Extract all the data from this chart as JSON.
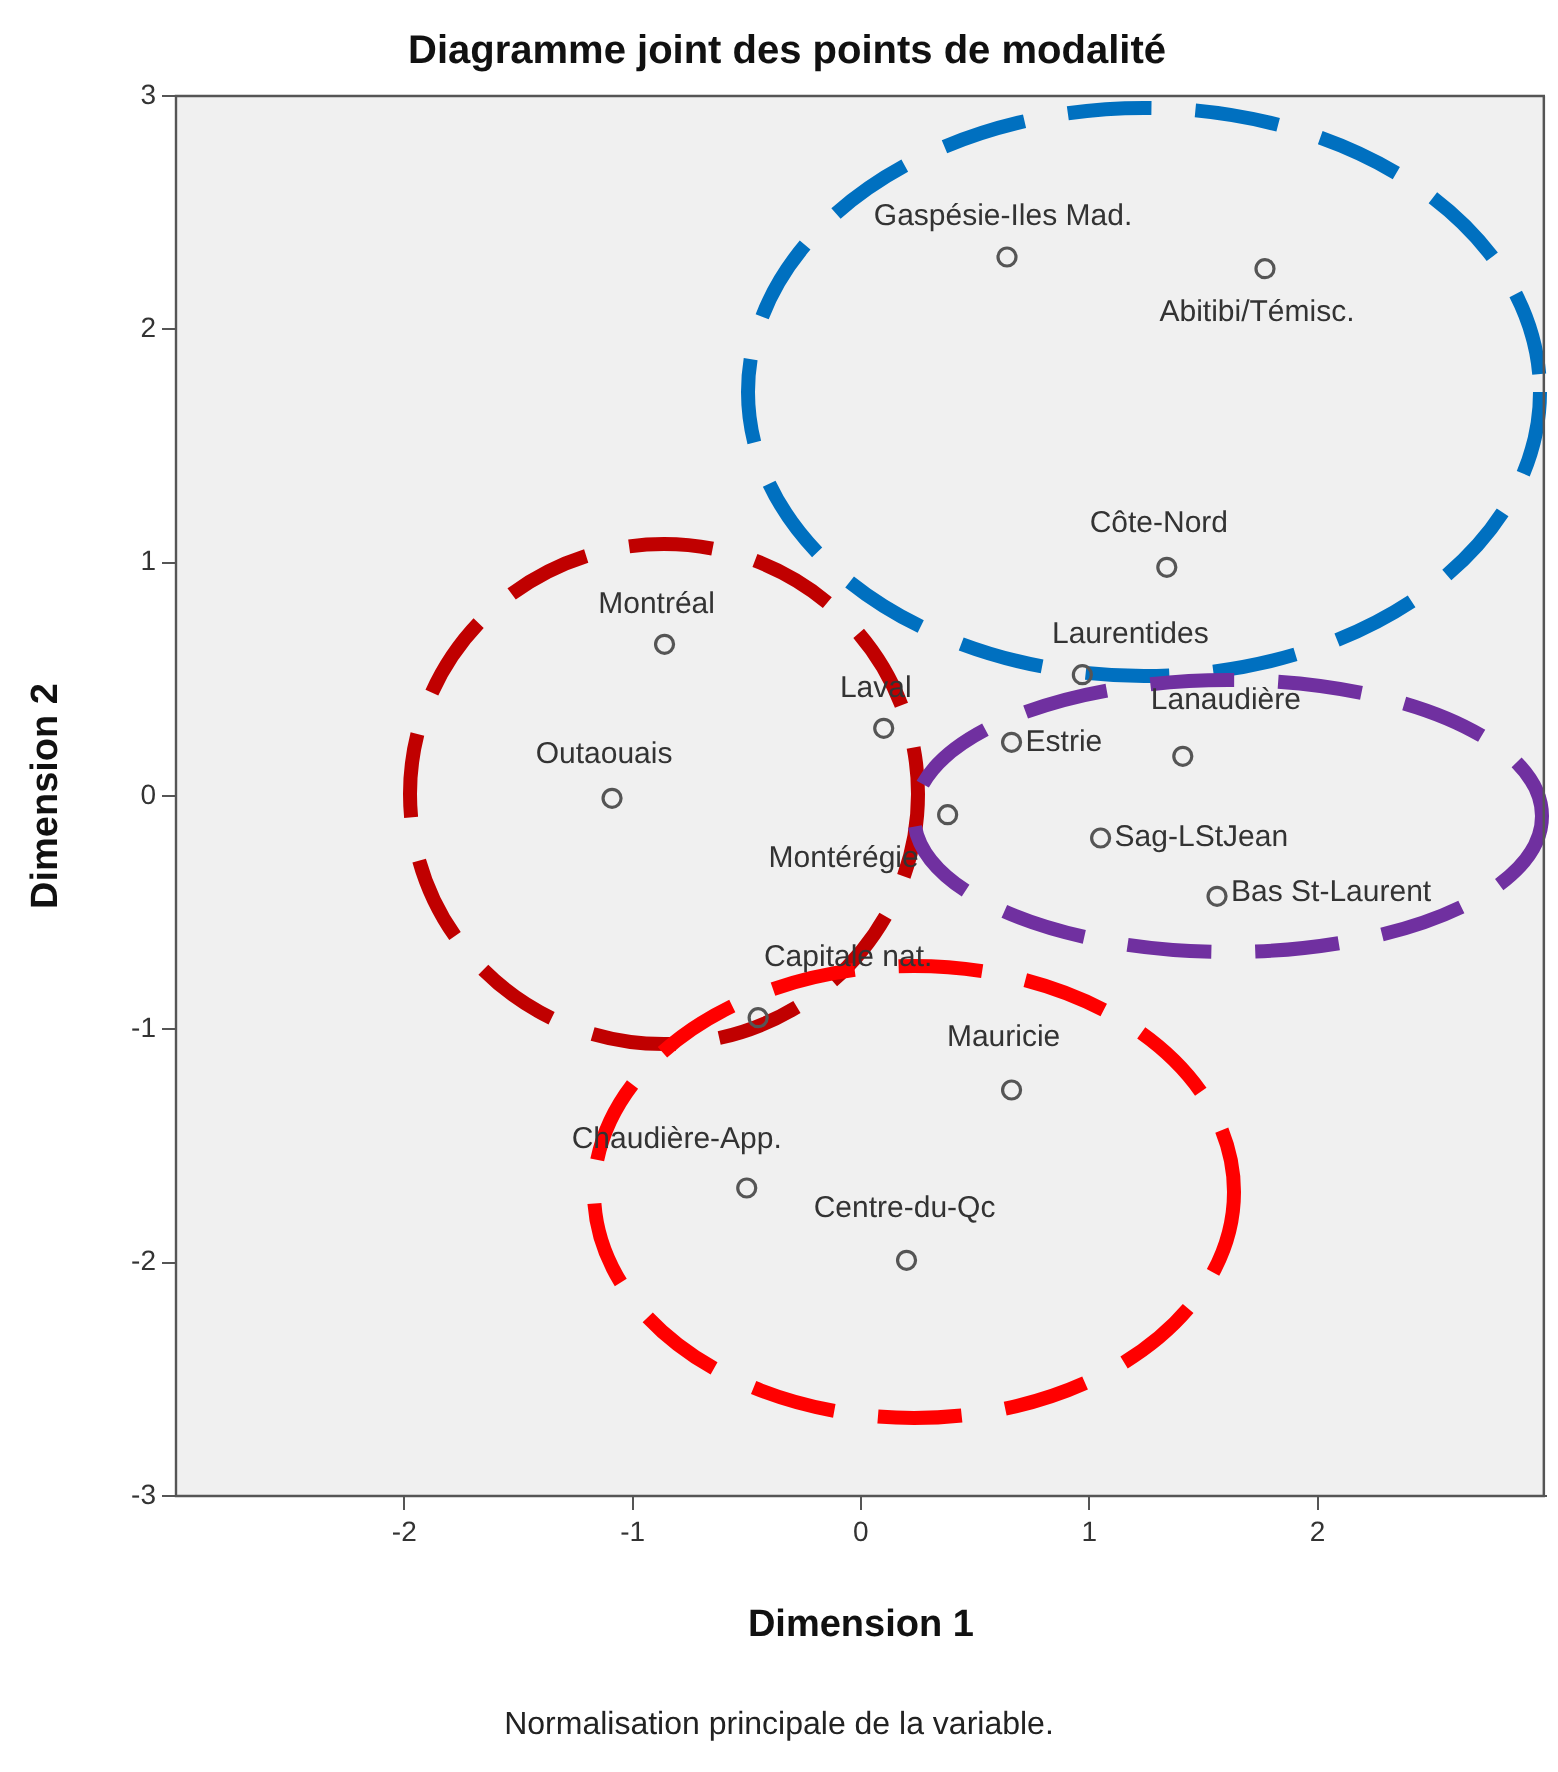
{
  "chart_data": {
    "type": "scatter",
    "title": "Diagramme joint des points de modalité",
    "xlabel": "Dimension 1",
    "ylabel": "Dimension 2",
    "x": [
      0.64,
      1.77,
      1.34,
      -0.86,
      0.97,
      0.1,
      0.66,
      1.41,
      -1.09,
      0.38,
      1.05,
      1.56,
      -0.45,
      0.66,
      -0.5,
      0.2
    ],
    "series": [
      {
        "color": "#555555",
        "values": [
          2.31,
          2.26,
          0.98,
          0.65,
          0.52,
          0.29,
          0.23,
          0.17,
          -0.01,
          -0.08,
          -0.18,
          -0.43,
          -0.95,
          -1.26,
          -1.68,
          -1.99
        ]
      }
    ],
    "xlim": [
      -3,
      3
    ],
    "xticks": [
      -2,
      -1,
      0,
      1,
      2
    ],
    "ylim": [
      -3,
      3
    ],
    "yticks": [
      -3,
      -2,
      -1,
      0,
      1,
      2,
      3
    ],
    "grid": false,
    "legend": false,
    "marker": "circle",
    "annotations": [
      {
        "text": "Gaspésie-Iles Mad.",
        "x": 0.64,
        "y": 2.31
      },
      {
        "text": "Abitibi/Témisc.",
        "x": 1.77,
        "y": 2.26
      },
      {
        "text": "Côte-Nord",
        "x": 1.34,
        "y": 0.98
      },
      {
        "text": "Montréal",
        "x": -0.86,
        "y": 0.65
      },
      {
        "text": "Laurentides",
        "x": 0.97,
        "y": 0.52
      },
      {
        "text": "Laval",
        "x": 0.1,
        "y": 0.29
      },
      {
        "text": "Estrie",
        "x": 0.66,
        "y": 0.23
      },
      {
        "text": "Lanaudière",
        "x": 1.41,
        "y": 0.17
      },
      {
        "text": "Outaouais",
        "x": -1.09,
        "y": -0.01
      },
      {
        "text": "Montérégie",
        "x": 0.38,
        "y": -0.08
      },
      {
        "text": "Sag-LStJean",
        "x": 1.05,
        "y": -0.18
      },
      {
        "text": "Bas St-Laurent",
        "x": 1.56,
        "y": -0.43
      },
      {
        "text": "Capitale nat.",
        "x": -0.45,
        "y": -0.95
      },
      {
        "text": "Mauricie",
        "x": 0.66,
        "y": -1.26
      },
      {
        "text": "Chaudière-App.",
        "x": -0.5,
        "y": -1.68
      },
      {
        "text": "Centre-du-Qc",
        "x": 0.2,
        "y": -1.99
      },
      "Normalisation principale de la variable."
    ]
  }
}
